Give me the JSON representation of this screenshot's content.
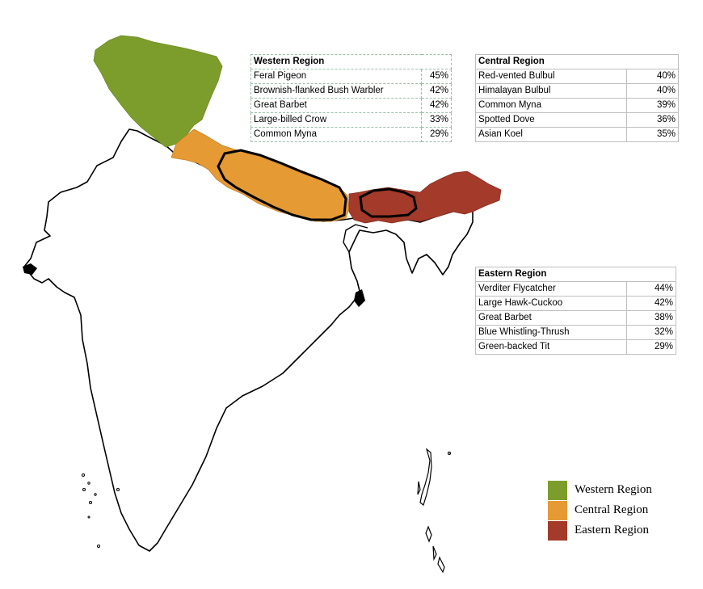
{
  "colors": {
    "western": "#7c9d2b",
    "central": "#e59a34",
    "eastern": "#a43a2a"
  },
  "tables": {
    "western": {
      "title": "Western Region",
      "rows": [
        {
          "bird": "Feral Pigeon",
          "pct": "45%"
        },
        {
          "bird": "Brownish-flanked Bush Warbler",
          "pct": "42%"
        },
        {
          "bird": "Great Barbet",
          "pct": "42%"
        },
        {
          "bird": "Large-billed Crow",
          "pct": "33%"
        },
        {
          "bird": "Common Myna",
          "pct": "29%"
        }
      ]
    },
    "central": {
      "title": "Central Region",
      "rows": [
        {
          "bird": "Red-vented Bulbul",
          "pct": "40%"
        },
        {
          "bird": "Himalayan Bulbul",
          "pct": "40%"
        },
        {
          "bird": "Common Myna",
          "pct": "39%"
        },
        {
          "bird": "Spotted Dove",
          "pct": "36%"
        },
        {
          "bird": "Asian Koel",
          "pct": "35%"
        }
      ]
    },
    "eastern": {
      "title": "Eastern Region",
      "rows": [
        {
          "bird": "Verditer Flycatcher",
          "pct": "44%"
        },
        {
          "bird": "Large Hawk-Cuckoo",
          "pct": "42%"
        },
        {
          "bird": "Great Barbet",
          "pct": "38%"
        },
        {
          "bird": "Blue Whistling-Thrush",
          "pct": "32%"
        },
        {
          "bird": "Green-backed Tit",
          "pct": "29%"
        }
      ]
    }
  },
  "legend": [
    {
      "label": "Western Region",
      "color": "#7c9d2b"
    },
    {
      "label": "Central Region",
      "color": "#e59a34"
    },
    {
      "label": "Eastern Region",
      "color": "#a43a2a"
    }
  ]
}
